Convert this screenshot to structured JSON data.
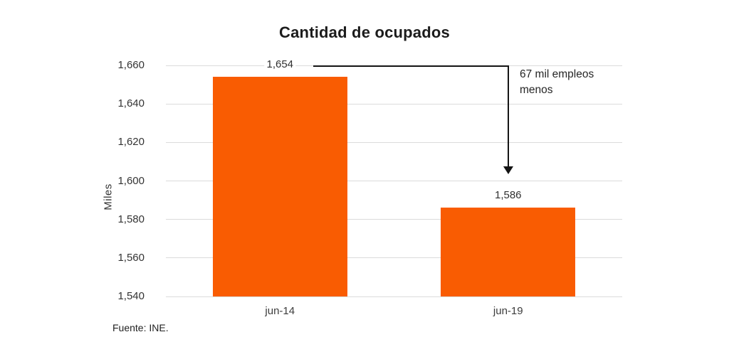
{
  "chart_data": {
    "type": "bar",
    "title": "Cantidad de ocupados",
    "ylabel": "Miles",
    "xlabel": "",
    "categories": [
      "jun-14",
      "jun-19"
    ],
    "values": [
      1654,
      1586
    ],
    "bar_labels": [
      "1,654",
      "1,586"
    ],
    "ylim": [
      1540,
      1660
    ],
    "ytick_step": 20,
    "ytick_labels": [
      "1,540",
      "1,560",
      "1,580",
      "1,600",
      "1,620",
      "1,640",
      "1,660"
    ],
    "grid": true,
    "legend": "none",
    "bar_color": "#f95c02",
    "gridline_color": "#dbdbdb",
    "arrow_color": "#141414",
    "annotation": {
      "text": "67 mil empleos menos",
      "from_value": 1654,
      "to_category": "jun-19"
    },
    "source": "Fuente: INE."
  }
}
